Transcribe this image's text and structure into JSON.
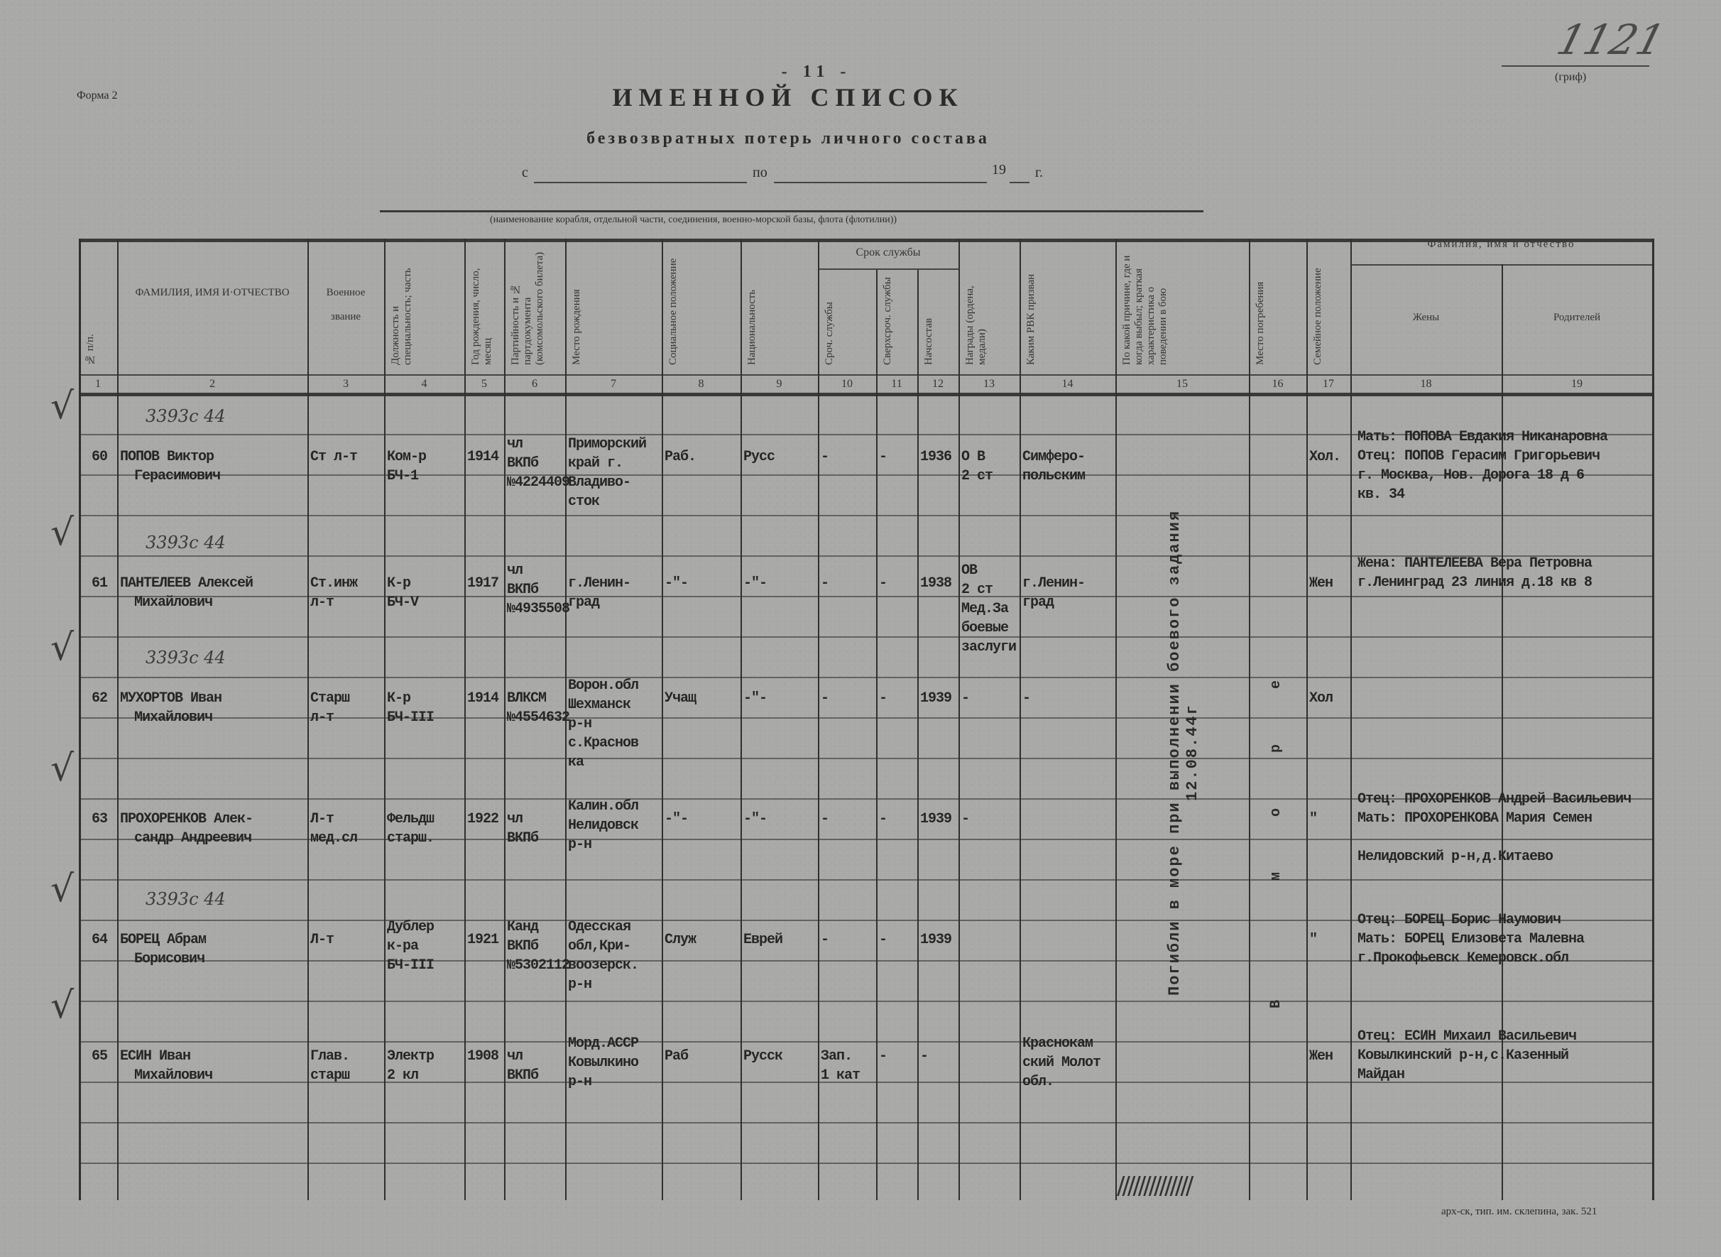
{
  "header": {
    "page_number": "- 11 -",
    "form_label": "Форма 2",
    "title": "ИМЕННОЙ СПИСОК",
    "subtitle": "безвозвратных потерь личного состава",
    "period_from": "с",
    "period_to": "по",
    "period_year": "19",
    "period_year_suffix": "г.",
    "unit_caption": "(наименование корабля, отдельной части, соединения, военно-морской базы, флота (флотилии))",
    "classification_label": "(гриф)",
    "archive_number": "1121"
  },
  "columns": [
    {
      "num": "1",
      "label": "№ п/п.",
      "vertical": true
    },
    {
      "num": "2",
      "label": "ФАМИЛИЯ, ИМЯ И·ОТЧЕСТВО",
      "vertical": false
    },
    {
      "num": "3",
      "label": "Военное звание",
      "vertical": false
    },
    {
      "num": "4",
      "label": "Должность и специальность; часть",
      "vertical": true
    },
    {
      "num": "5",
      "label": "Год рождения, число, месяц",
      "vertical": true
    },
    {
      "num": "6",
      "label": "Партийность и № партдокумента (комсомольского билета)",
      "vertical": true
    },
    {
      "num": "7",
      "label": "Место рождения",
      "vertical": true
    },
    {
      "num": "8",
      "label": "Социальное положение",
      "vertical": true
    },
    {
      "num": "9",
      "label": "Национальность",
      "vertical": true
    },
    {
      "num": "10",
      "label": "Сроч. службы",
      "vertical": true
    },
    {
      "num": "11",
      "label": "Сверхсроч. службы",
      "vertical": true
    },
    {
      "num": "12",
      "label": "Начсостав",
      "vertical": true
    },
    {
      "num": "13",
      "label": "Награды (ордена, медали)",
      "vertical": true
    },
    {
      "num": "14",
      "label": "Каким РВК призван",
      "vertical": true
    },
    {
      "num": "15",
      "label": "По какой причине, где и когда выбыл; краткая характеристика о поведении в бою",
      "vertical": true
    },
    {
      "num": "16",
      "label": "Место погребения",
      "vertical": true
    },
    {
      "num": "17",
      "label": "Семейное положение",
      "vertical": true
    },
    {
      "num": "18",
      "label": "Жены",
      "vertical": false
    },
    {
      "num": "19",
      "label": "Родителей",
      "vertical": false
    }
  ],
  "group_headers": {
    "service_term": "Срок службы",
    "relatives_name": "Фамилия, имя и отчество"
  },
  "merged": {
    "cause": "Погибли в море при выполнении боевого задания 12.08.44г",
    "burial": "В море"
  },
  "rows": [
    {
      "num": "60",
      "note": "3393с 44",
      "name": [
        "ПОПОВ Виктор",
        "Герасимович"
      ],
      "rank": [
        "Ст л-т"
      ],
      "position": [
        "Ком-р",
        "БЧ-1"
      ],
      "birth": [
        "1914"
      ],
      "party": [
        "чл",
        "ВКПб",
        "№4224409"
      ],
      "birthplace": [
        "Приморский",
        "край г.",
        "Владиво-",
        "сток"
      ],
      "social": [
        "Раб."
      ],
      "nationality": [
        "Русс"
      ],
      "term_regular": [
        "-"
      ],
      "term_extended": [
        "-"
      ],
      "command": [
        "1936"
      ],
      "awards": [
        "О В",
        "2 ст"
      ],
      "rvk": [
        "Симферо-",
        "польским"
      ],
      "family": [
        "Хол."
      ],
      "relatives": [
        "Мать: ПОПОВА Евдакия Никанаровна",
        "Отец: ПОПОВ Герасим Григорьевич",
        "г. Москва, Нов. Дорога 18 д 6",
        "кв. 34"
      ]
    },
    {
      "num": "61",
      "note": "3393с 44",
      "name": [
        "ПАНТЕЛЕЕВ Алексей",
        "Михайлович"
      ],
      "rank": [
        "Ст.инж",
        "л-т"
      ],
      "position": [
        "К-р",
        "БЧ-V"
      ],
      "birth": [
        "1917"
      ],
      "party": [
        "чл",
        "ВКПб",
        "№4935508"
      ],
      "birthplace": [
        "г.Ленин-",
        "град"
      ],
      "social": [
        "-\"-"
      ],
      "nationality": [
        "-\"-"
      ],
      "term_regular": [
        "-"
      ],
      "term_extended": [
        "-"
      ],
      "command": [
        "1938"
      ],
      "awards": [
        "ОВ",
        "2 ст",
        "Мед.За",
        "боевые",
        "заслуги"
      ],
      "rvk": [
        "г.Ленин-",
        "град"
      ],
      "family": [
        "Жен"
      ],
      "relatives": [
        "Жена: ПАНТЕЛЕЕВА Вера Петровна",
        "г.Ленинград 23 линия д.18 кв 8"
      ]
    },
    {
      "num": "62",
      "note": "3393с 44",
      "name": [
        "МУХОРТОВ Иван",
        "Михайлович"
      ],
      "rank": [
        "Старш",
        "л-т"
      ],
      "position": [
        "К-р",
        "БЧ-III"
      ],
      "birth": [
        "1914"
      ],
      "party": [
        "ВЛКСМ",
        "№4554632"
      ],
      "birthplace": [
        "Ворон.обл",
        "Шехманск",
        "р-н",
        "с.Краснов",
        "ка"
      ],
      "social": [
        "Учащ"
      ],
      "nationality": [
        "-\"-"
      ],
      "term_regular": [
        "-"
      ],
      "term_extended": [
        "-"
      ],
      "command": [
        "1939"
      ],
      "awards": [
        "-"
      ],
      "rvk": [
        "-"
      ],
      "family": [
        "Хол"
      ],
      "relatives": []
    },
    {
      "num": "63",
      "note": "",
      "name": [
        "ПРОХОРЕНКОВ Алек-",
        "сандр Андреевич"
      ],
      "rank": [
        "Л-т",
        "мед.сл"
      ],
      "position": [
        "Фельдш",
        "старш."
      ],
      "birth": [
        "1922"
      ],
      "party": [
        "чл",
        "ВКПб"
      ],
      "birthplace": [
        "Калин.обл",
        "Нелидовск",
        "р-н"
      ],
      "social": [
        "-\"-"
      ],
      "nationality": [
        "-\"-"
      ],
      "term_regular": [
        "-"
      ],
      "term_extended": [
        "-"
      ],
      "command": [
        "1939"
      ],
      "awards": [
        "-"
      ],
      "rvk": [],
      "family": [
        "\""
      ],
      "relatives": [
        "Отец: ПРОХОРЕНКОВ Андрей Васильевич",
        "Мать: ПРОХОРЕНКОВА Мария Семен",
        "",
        "Нелидовский р-н,д.Китаево"
      ]
    },
    {
      "num": "64",
      "note": "3393с 44",
      "name": [
        "БОРЕЦ Абрам",
        "Борисович"
      ],
      "rank": [
        "Л-т"
      ],
      "position": [
        "Дублер",
        "к-ра",
        "БЧ-III"
      ],
      "birth": [
        "1921"
      ],
      "party": [
        "Канд",
        "ВКПб",
        "№5302112"
      ],
      "birthplace": [
        "Одесская",
        "обл,Кри-",
        "воозерск.",
        "р-н"
      ],
      "social": [
        "Служ"
      ],
      "nationality": [
        "Еврей"
      ],
      "term_regular": [
        "-"
      ],
      "term_extended": [
        "-"
      ],
      "command": [
        "1939"
      ],
      "awards": [],
      "rvk": [],
      "family": [
        "\""
      ],
      "relatives": [
        "Отец: БОРЕЦ Борис Наумович",
        "Мать: БОРЕЦ Елизовета Малевна",
        "г.Прокофьевск Кемеровск.обл"
      ]
    },
    {
      "num": "65",
      "note": "",
      "name": [
        "ЕСИН Иван",
        "Михайлович"
      ],
      "rank": [
        "Глав.",
        "старш"
      ],
      "position": [
        "Электр",
        "2 кл"
      ],
      "birth": [
        "1908"
      ],
      "party": [
        "чл",
        "ВКПб"
      ],
      "birthplace": [
        "Морд.АССР",
        "Ковылкино",
        "р-н"
      ],
      "social": [
        "Раб"
      ],
      "nationality": [
        "Русск"
      ],
      "term_regular": [
        "Зап.",
        "1 кат"
      ],
      "term_extended": [
        "-"
      ],
      "command": [
        "-"
      ],
      "awards": [],
      "rvk": [
        "Краснокам",
        "ский Молот",
        "обл."
      ],
      "family": [
        "Жен"
      ],
      "relatives": [
        "Отец: ЕСИН Михаил Васильевич",
        "Ковылкинский р-н,с.Казенный",
        "Майдан"
      ]
    }
  ],
  "footer": {
    "printer": "арх-ск, тип. им. склепина, зак. 521"
  }
}
